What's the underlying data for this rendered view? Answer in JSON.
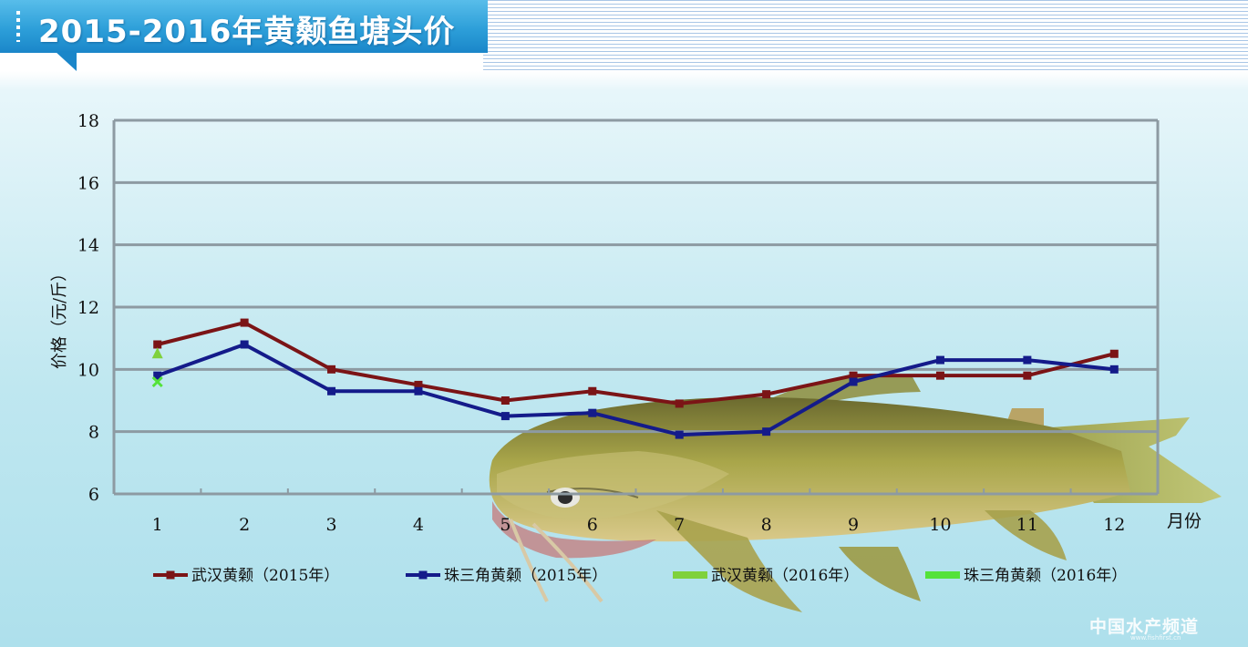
{
  "title": "2015-2016年黄颡鱼塘头价",
  "watermark": "中国水产频道",
  "watermark_sub": "www.fishfirst.cn",
  "colors": {
    "wuhan_2015": "#7b1416",
    "pearl_2015": "#141b8a",
    "wuhan_2016": "#7fd13c",
    "pearl_2016": "#54e23a",
    "grid": "#8d9aa2"
  },
  "chart_data": {
    "type": "line",
    "title": "2015-2016年黄颡鱼塘头价",
    "xlabel": "月份",
    "ylabel": "价格（元/斤）",
    "ylim": [
      6,
      18
    ],
    "yticks": [
      "6",
      "8",
      "10",
      "12",
      "14",
      "16",
      "18"
    ],
    "categories": [
      "1",
      "2",
      "3",
      "4",
      "5",
      "6",
      "7",
      "8",
      "9",
      "10",
      "11",
      "12"
    ],
    "grid": true,
    "legend_position": "bottom",
    "series": [
      {
        "name": "武汉黄颡（2015年）",
        "color": "#7b1416",
        "marker": "square",
        "values": [
          10.8,
          11.5,
          10.0,
          9.5,
          9.0,
          9.3,
          8.9,
          9.2,
          9.8,
          9.8,
          9.8,
          10.5
        ]
      },
      {
        "name": "珠三角黄颡（2015年）",
        "color": "#141b8a",
        "marker": "square",
        "values": [
          9.8,
          10.8,
          9.3,
          9.3,
          8.5,
          8.6,
          7.9,
          8.0,
          9.6,
          10.3,
          10.3,
          10.0
        ]
      },
      {
        "name": "武汉黄颡（2016年）",
        "color": "#7fd13c",
        "marker": "triangle",
        "values": [
          10.5,
          null,
          null,
          null,
          null,
          null,
          null,
          null,
          null,
          null,
          null,
          null
        ]
      },
      {
        "name": "珠三角黄颡（2016年）",
        "color": "#54e23a",
        "marker": "x",
        "values": [
          9.6,
          null,
          null,
          null,
          null,
          null,
          null,
          null,
          null,
          null,
          null,
          null
        ]
      }
    ]
  }
}
